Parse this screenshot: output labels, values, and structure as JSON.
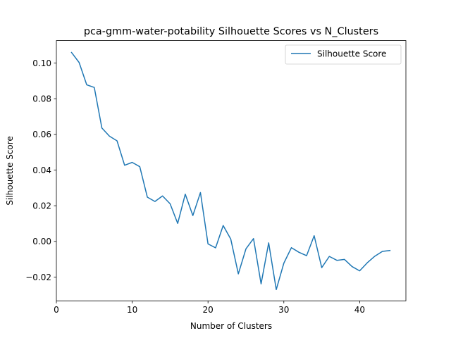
{
  "chart_data": {
    "type": "line",
    "title": "pca-gmm-water-potability Silhouette Scores vs N_Clusters",
    "xlabel": "Number of Clusters",
    "ylabel": "Silhouette Score",
    "xlim": [
      0,
      46.1
    ],
    "ylim": [
      -0.0333,
      0.1126
    ],
    "xticks": [
      0,
      10,
      20,
      30,
      40
    ],
    "yticks": [
      -0.02,
      0.0,
      0.02,
      0.04,
      0.06,
      0.08,
      0.1
    ],
    "ytick_labels": [
      "−0.02",
      "0.00",
      "0.02",
      "0.04",
      "0.06",
      "0.08",
      "0.10"
    ],
    "grid": false,
    "legend_position": "top-right",
    "series": [
      {
        "name": "Silhouette Score",
        "color": "#1f77b4",
        "x": [
          2,
          3,
          4,
          5,
          6,
          7,
          8,
          9,
          10,
          11,
          12,
          13,
          14,
          15,
          16,
          17,
          18,
          19,
          20,
          21,
          22,
          23,
          24,
          25,
          26,
          27,
          28,
          29,
          30,
          31,
          32,
          33,
          34,
          35,
          36,
          37,
          38,
          39,
          40,
          41,
          42,
          43,
          44
        ],
        "values": [
          0.1059,
          0.1003,
          0.0878,
          0.0863,
          0.0636,
          0.059,
          0.0564,
          0.0427,
          0.0443,
          0.0419,
          0.0248,
          0.0224,
          0.0255,
          0.0211,
          0.0101,
          0.0265,
          0.0145,
          0.0274,
          -0.0014,
          -0.0036,
          0.0089,
          0.0013,
          -0.0182,
          -0.0042,
          0.0016,
          -0.0238,
          -0.0008,
          -0.027,
          -0.0122,
          -0.0035,
          -0.0061,
          -0.008,
          0.0032,
          -0.0147,
          -0.0084,
          -0.0106,
          -0.0101,
          -0.0141,
          -0.0165,
          -0.012,
          -0.0083,
          -0.0056,
          -0.0051
        ]
      }
    ]
  }
}
